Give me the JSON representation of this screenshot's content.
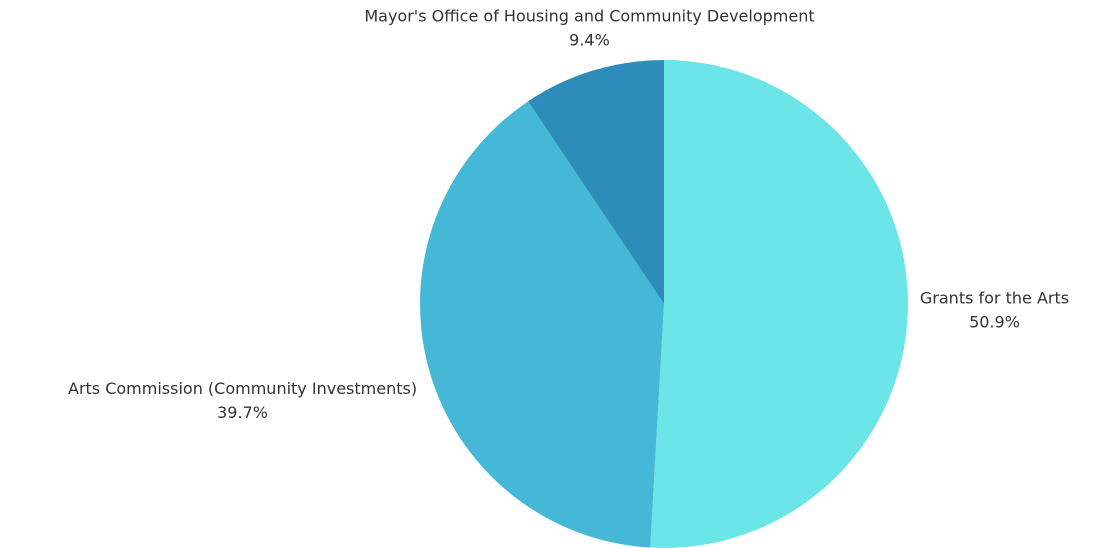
{
  "chart_data": {
    "type": "pie",
    "categories": [
      "Grants for the Arts",
      "Arts Commission (Community Investments)",
      "Mayor's Office of Housing and Community Development"
    ],
    "values": [
      50.9,
      39.7,
      9.4
    ],
    "value_labels": [
      "50.9%",
      "39.7%",
      "9.4%"
    ],
    "colors": [
      "#6ce5e8",
      "#44b8d6",
      "#2d8cba"
    ]
  }
}
